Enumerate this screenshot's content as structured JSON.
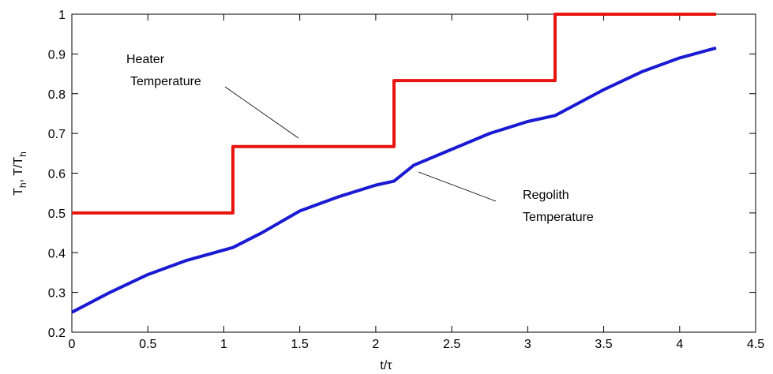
{
  "chart_data": {
    "type": "line",
    "x_label": "t/τ",
    "y_label_parts": [
      "T",
      "h",
      ", T/T",
      "h"
    ],
    "xlim": [
      0,
      4.5
    ],
    "xticks": [
      0,
      0.5,
      1,
      1.5,
      2,
      2.5,
      3,
      3.5,
      4,
      4.5
    ],
    "ylim": [
      0.2,
      1
    ],
    "yticks": [
      0.2,
      0.3,
      0.4,
      0.5,
      0.6,
      0.7,
      0.8,
      0.9,
      1
    ],
    "grid": false,
    "series": [
      {
        "name": "Heater Temperature",
        "color": "#e8140e",
        "x": [
          0,
          1.06,
          1.06,
          2.12,
          2.12,
          3.18,
          3.18,
          4.24
        ],
        "values": [
          0.5,
          0.5,
          0.667,
          0.667,
          0.833,
          0.833,
          1,
          1
        ]
      },
      {
        "name": "Regolith Temperature",
        "color": "#1a1ad2",
        "x": [
          0,
          0.25,
          0.5,
          0.75,
          1.06,
          1.25,
          1.5,
          1.75,
          2.0,
          2.12,
          2.25,
          2.5,
          2.75,
          3.0,
          3.18,
          3.5,
          3.75,
          4.0,
          4.24
        ],
        "values": [
          0.25,
          0.3,
          0.345,
          0.38,
          0.413,
          0.45,
          0.505,
          0.54,
          0.57,
          0.58,
          0.62,
          0.66,
          0.7,
          0.73,
          0.745,
          0.81,
          0.855,
          0.89,
          0.915
        ]
      }
    ],
    "annotations": [
      {
        "lines": [
          "Heater",
          "Temperature"
        ]
      },
      {
        "lines": [
          "Regolith",
          "Temperature"
        ]
      }
    ]
  }
}
